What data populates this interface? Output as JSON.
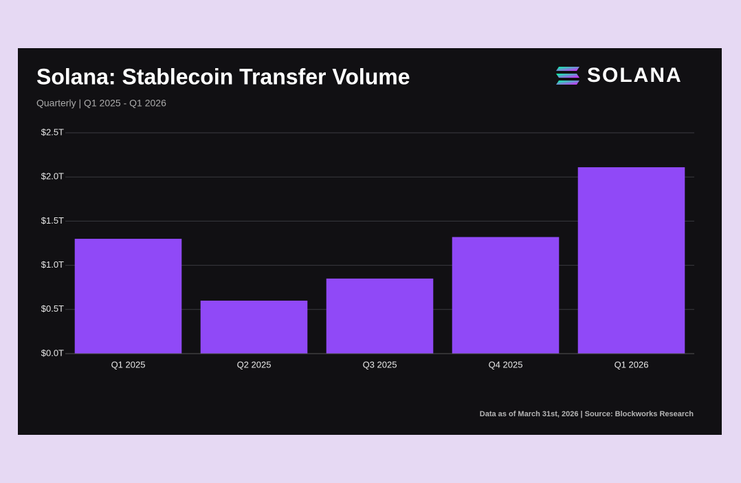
{
  "chart_data": {
    "type": "bar",
    "title": "Solana: Stablecoin Transfer Volume",
    "subtitle": "Quarterly | Q1 2025 - Q1 2026",
    "logo": "SOLANA",
    "categories": [
      "Q1 2025",
      "Q2 2025",
      "Q3 2025",
      "Q4 2025",
      "Q1 2026"
    ],
    "values": [
      1.3,
      0.6,
      0.85,
      1.32,
      2.11
    ],
    "color": "#9049f7",
    "ylim": [
      0,
      2.5
    ],
    "yticks": [
      {
        "value": 0,
        "label": "$0.0T"
      },
      {
        "value": 0.5,
        "label": "$0.5T"
      },
      {
        "value": 1,
        "label": "$1.0T"
      },
      {
        "value": 1.5,
        "label": "$1.5T"
      },
      {
        "value": 2,
        "label": "$2.0T"
      },
      {
        "value": 2.5,
        "label": "$2.5T"
      }
    ],
    "grid": true,
    "source": "Data as of March 31st, 2026 | Source: Blockworks Research"
  }
}
